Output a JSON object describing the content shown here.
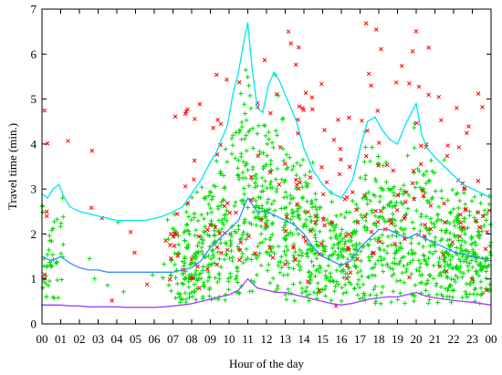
{
  "chart_data": {
    "type": "scatter",
    "xlabel": "Hour of the day",
    "ylabel": "Travel time (min.)",
    "xlim": [
      0,
      24
    ],
    "ylim": [
      0,
      7
    ],
    "x_ticks": [
      {
        "value": 0,
        "label": "00"
      },
      {
        "value": 1,
        "label": "01"
      },
      {
        "value": 2,
        "label": "02"
      },
      {
        "value": 3,
        "label": "03"
      },
      {
        "value": 4,
        "label": "04"
      },
      {
        "value": 5,
        "label": "05"
      },
      {
        "value": 6,
        "label": "06"
      },
      {
        "value": 7,
        "label": "07"
      },
      {
        "value": 8,
        "label": "08"
      },
      {
        "value": 9,
        "label": "09"
      },
      {
        "value": 10,
        "label": "10"
      },
      {
        "value": 11,
        "label": "11"
      },
      {
        "value": 12,
        "label": "12"
      },
      {
        "value": 13,
        "label": "13"
      },
      {
        "value": 14,
        "label": "14"
      },
      {
        "value": 15,
        "label": "15"
      },
      {
        "value": 16,
        "label": "16"
      },
      {
        "value": 17,
        "label": "17"
      },
      {
        "value": 18,
        "label": "18"
      },
      {
        "value": 19,
        "label": "19"
      },
      {
        "value": 20,
        "label": "20"
      },
      {
        "value": 21,
        "label": "21"
      },
      {
        "value": 22,
        "label": "22"
      },
      {
        "value": 23,
        "label": "23"
      },
      {
        "value": 24,
        "label": "00"
      }
    ],
    "y_ticks": [
      {
        "value": 0,
        "label": "0"
      },
      {
        "value": 1,
        "label": "1"
      },
      {
        "value": 2,
        "label": "2"
      },
      {
        "value": 3,
        "label": "3"
      },
      {
        "value": 4,
        "label": "4"
      },
      {
        "value": 5,
        "label": "5"
      },
      {
        "value": 6,
        "label": "6"
      },
      {
        "value": 7,
        "label": "7"
      }
    ],
    "grid": false,
    "legend": "none",
    "lines": [
      {
        "color": "#00e5ee",
        "x": [
          0,
          0.3,
          0.6,
          0.9,
          1.2,
          1.5,
          2,
          2.5,
          3,
          3.5,
          4,
          4.5,
          5,
          5.5,
          6,
          6.5,
          7,
          7.5,
          8,
          8.5,
          9,
          9.3,
          9.6,
          9.9,
          10.2,
          10.5,
          10.8,
          11,
          11.2,
          11.5,
          11.8,
          12.1,
          12.4,
          12.7,
          13,
          13.3,
          13.6,
          14,
          14.5,
          15,
          15.5,
          16,
          16.3,
          16.6,
          17,
          17.4,
          17.8,
          18.2,
          18.6,
          19,
          19.5,
          20,
          20.3,
          20.6,
          21,
          21.5,
          22,
          22.5,
          23,
          23.5,
          24
        ],
        "y": [
          2.9,
          2.8,
          3.0,
          3.1,
          2.8,
          2.6,
          2.5,
          2.45,
          2.4,
          2.35,
          2.3,
          2.3,
          2.3,
          2.3,
          2.35,
          2.4,
          2.5,
          2.6,
          2.9,
          3.2,
          3.6,
          3.8,
          4.1,
          4.4,
          5.1,
          5.6,
          6.3,
          6.7,
          5.8,
          4.8,
          4.7,
          5.3,
          5.6,
          5.4,
          5.1,
          4.8,
          4.5,
          3.9,
          3.4,
          3.1,
          2.9,
          2.8,
          3.0,
          3.2,
          3.9,
          4.5,
          4.6,
          4.3,
          4.1,
          4.0,
          4.5,
          4.9,
          4.2,
          3.9,
          3.7,
          3.5,
          3.3,
          3.1,
          3.0,
          2.9,
          2.8
        ]
      },
      {
        "color": "#2f8fff",
        "x": [
          0,
          0.5,
          1,
          1.5,
          2,
          2.5,
          3,
          3.5,
          4,
          4.5,
          5,
          5.5,
          6,
          6.5,
          7,
          7.5,
          8,
          8.5,
          9,
          9.5,
          10,
          10.5,
          11,
          11.5,
          12,
          12.5,
          13,
          13.5,
          14,
          14.5,
          15,
          15.5,
          16,
          16.5,
          17,
          17.5,
          18,
          18.5,
          19,
          19.5,
          20,
          20.5,
          21,
          21.5,
          22,
          22.5,
          23,
          23.5,
          24
        ],
        "y": [
          1.5,
          1.4,
          1.5,
          1.35,
          1.25,
          1.2,
          1.2,
          1.15,
          1.15,
          1.15,
          1.15,
          1.15,
          1.15,
          1.15,
          1.15,
          1.2,
          1.25,
          1.4,
          1.7,
          1.9,
          2.1,
          2.3,
          2.8,
          2.5,
          2.5,
          2.4,
          2.3,
          2.2,
          2.0,
          1.7,
          1.5,
          1.4,
          1.3,
          1.4,
          1.7,
          1.9,
          2.1,
          2.1,
          2.0,
          1.9,
          2.0,
          1.9,
          1.8,
          1.7,
          1.6,
          1.55,
          1.5,
          1.45,
          1.4
        ]
      },
      {
        "color": "#9f3fff",
        "x": [
          0,
          0.5,
          1,
          1.5,
          2,
          2.5,
          3,
          3.5,
          4,
          4.5,
          5,
          5.5,
          6,
          6.5,
          7,
          7.5,
          8,
          8.5,
          9,
          9.5,
          10,
          10.5,
          11,
          11.5,
          12,
          12.5,
          13,
          13.5,
          14,
          14.5,
          15,
          15.5,
          16,
          16.5,
          17,
          17.5,
          18,
          18.5,
          19,
          19.5,
          20,
          20.5,
          21,
          21.5,
          22,
          22.5,
          23,
          23.5,
          24
        ],
        "y": [
          0.42,
          0.42,
          0.42,
          0.4,
          0.4,
          0.38,
          0.38,
          0.38,
          0.38,
          0.37,
          0.37,
          0.37,
          0.37,
          0.38,
          0.4,
          0.42,
          0.45,
          0.5,
          0.55,
          0.6,
          0.65,
          0.75,
          1.0,
          0.8,
          0.75,
          0.7,
          0.7,
          0.65,
          0.6,
          0.55,
          0.5,
          0.45,
          0.42,
          0.45,
          0.5,
          0.55,
          0.58,
          0.6,
          0.6,
          0.65,
          0.7,
          0.62,
          0.58,
          0.55,
          0.52,
          0.5,
          0.48,
          0.45,
          0.42
        ]
      }
    ],
    "scatter": [
      {
        "color": "#00dd00",
        "marker": "+",
        "count": 1400
      },
      {
        "color": "#ff0000",
        "marker": "x",
        "count": 240
      }
    ]
  }
}
